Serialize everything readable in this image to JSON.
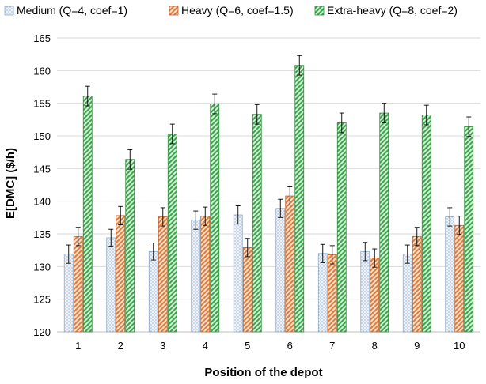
{
  "chart_data": {
    "type": "bar",
    "title": "",
    "xlabel": "Position of the depot",
    "ylabel": "E[DMC] ($/h)",
    "ylim": [
      120,
      165
    ],
    "yticks": [
      120,
      125,
      130,
      135,
      140,
      145,
      150,
      155,
      160,
      165
    ],
    "grid": true,
    "legend_position": "top",
    "error_bars": true,
    "categories": [
      "1",
      "2",
      "3",
      "4",
      "5",
      "6",
      "7",
      "8",
      "9",
      "10"
    ],
    "series": [
      {
        "name": "Medium (Q=4, coef=1)",
        "pattern": "dots",
        "color": "#d9e4ef",
        "stroke": "#8ea9c8",
        "values": [
          131.9,
          134.4,
          132.3,
          137.1,
          137.9,
          138.9,
          132.0,
          132.3,
          131.9,
          137.6
        ],
        "errors": [
          1.4,
          1.3,
          1.3,
          1.4,
          1.4,
          1.4,
          1.4,
          1.4,
          1.4,
          1.4
        ]
      },
      {
        "name": "Heavy (Q=6, coef=1.5)",
        "pattern": "diagonal",
        "color": "#e07b39",
        "stroke": "#c0622a",
        "values": [
          134.6,
          137.8,
          137.6,
          137.7,
          132.9,
          140.8,
          131.8,
          131.3,
          134.6,
          136.3
        ],
        "errors": [
          1.4,
          1.4,
          1.4,
          1.4,
          1.4,
          1.4,
          1.4,
          1.4,
          1.4,
          1.4
        ]
      },
      {
        "name": "Extra-heavy (Q=8, coef=2)",
        "pattern": "diagonal",
        "color": "#3aa64a",
        "stroke": "#2d8a3a",
        "values": [
          156.1,
          146.4,
          150.3,
          154.9,
          153.3,
          160.8,
          152.0,
          153.5,
          153.2,
          151.4
        ],
        "errors": [
          1.5,
          1.5,
          1.5,
          1.5,
          1.5,
          1.5,
          1.5,
          1.5,
          1.5,
          1.5
        ]
      }
    ]
  }
}
